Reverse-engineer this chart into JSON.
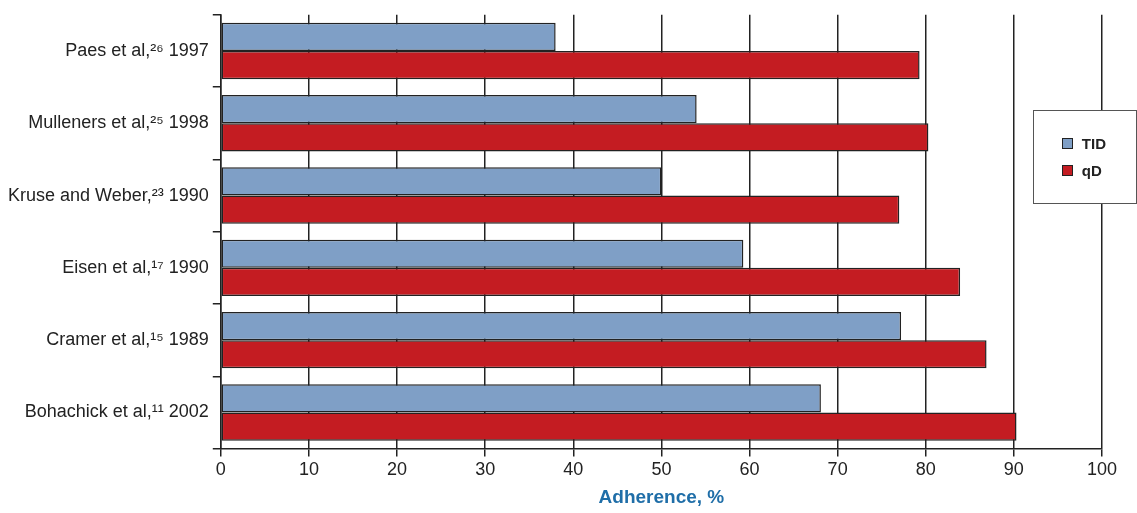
{
  "chart_data": {
    "type": "bar",
    "orientation": "horizontal",
    "xlabel": "Adherence, %",
    "categories": [
      "Paes et al,²⁶ 1997",
      "Mulleners et al,²⁵ 1998",
      "Kruse and Weber,²³ 1990",
      "Eisen et al,¹⁷ 1990",
      "Cramer et al,¹⁵ 1989",
      "Bohachick et al,¹¹ 2002"
    ],
    "series": [
      {
        "name": "TID",
        "color": "#7f9fc6",
        "values": [
          38,
          54,
          50,
          59.3,
          77.2,
          68.1
        ]
      },
      {
        "name": "qD",
        "color": "#c41c22",
        "values": [
          79.3,
          80.3,
          77,
          83.9,
          86.9,
          90.3
        ]
      }
    ],
    "xlim": [
      0,
      100
    ],
    "xticks": [
      0,
      10,
      20,
      30,
      40,
      50,
      60,
      70,
      80,
      90,
      100
    ],
    "grid": "x",
    "legend": "right"
  }
}
